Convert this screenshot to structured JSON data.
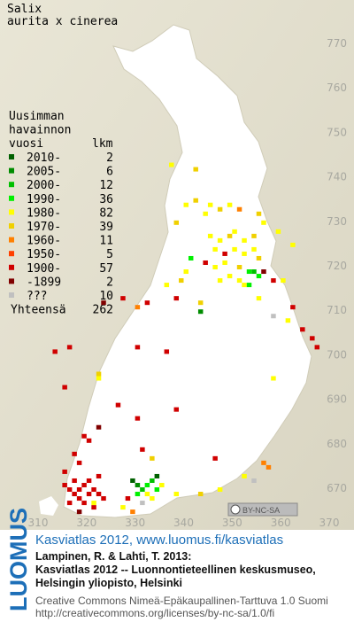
{
  "header": {
    "title": "Salix",
    "subtitle": "aurita x cinerea"
  },
  "legend": {
    "heading": [
      "Uusimman",
      "havainnon",
      "vuosi"
    ],
    "count_heading": "lkm",
    "items": [
      {
        "label": "2010-",
        "count": 2,
        "color": "#006000"
      },
      {
        "label": "2005-",
        "count": 6,
        "color": "#008c00"
      },
      {
        "label": "2000-",
        "count": 12,
        "color": "#00c000"
      },
      {
        "label": "1990-",
        "count": 36,
        "color": "#00f000"
      },
      {
        "label": "1980-",
        "count": 82,
        "color": "#ffff00"
      },
      {
        "label": "1970-",
        "count": 39,
        "color": "#f0d000"
      },
      {
        "label": "1960-",
        "count": 11,
        "color": "#ff8000"
      },
      {
        "label": "1950-",
        "count": 5,
        "color": "#ff4000"
      },
      {
        "label": "1900-",
        "count": 57,
        "color": "#d00000"
      },
      {
        "label": "-1899",
        "count": 2,
        "color": "#800000"
      },
      {
        "label": "???",
        "count": 10,
        "color": "#c0c0c0"
      }
    ],
    "total_label": "Yhteensä",
    "total": 262
  },
  "map": {
    "xticks": [
      310,
      320,
      330,
      340,
      350,
      360,
      370
    ],
    "yticks": [
      670,
      680,
      690,
      700,
      710,
      720,
      730,
      740,
      750,
      760,
      770
    ],
    "squares": [
      [
        337,
        742,
        4
      ],
      [
        342,
        741,
        5
      ],
      [
        340,
        733,
        4
      ],
      [
        342,
        734,
        5
      ],
      [
        345,
        733,
        4
      ],
      [
        347,
        732,
        5
      ],
      [
        349,
        733,
        4
      ],
      [
        351,
        732,
        6
      ],
      [
        344,
        731,
        4
      ],
      [
        338,
        729,
        5
      ],
      [
        356,
        729,
        4
      ],
      [
        355,
        731,
        5
      ],
      [
        345,
        726,
        4
      ],
      [
        347,
        725,
        4
      ],
      [
        349,
        726,
        5
      ],
      [
        350,
        727,
        4
      ],
      [
        352,
        725,
        4
      ],
      [
        354,
        726,
        5
      ],
      [
        346,
        723,
        4
      ],
      [
        348,
        722,
        8
      ],
      [
        350,
        723,
        4
      ],
      [
        352,
        722,
        4
      ],
      [
        354,
        723,
        4
      ],
      [
        355,
        721,
        5
      ],
      [
        344,
        720,
        8
      ],
      [
        346,
        719,
        4
      ],
      [
        348,
        720,
        4
      ],
      [
        351,
        719,
        5
      ],
      [
        353,
        718,
        3
      ],
      [
        354,
        718,
        2
      ],
      [
        355,
        717,
        3
      ],
      [
        349,
        717,
        4
      ],
      [
        347,
        716,
        4
      ],
      [
        351,
        716,
        4
      ],
      [
        352,
        715,
        4
      ],
      [
        353,
        715,
        3
      ],
      [
        340,
        718,
        4
      ],
      [
        339,
        716,
        5
      ],
      [
        341,
        721,
        3
      ],
      [
        336,
        715,
        4
      ],
      [
        343,
        711,
        5
      ],
      [
        356,
        718,
        9
      ],
      [
        358,
        716,
        8
      ],
      [
        360,
        716,
        4
      ],
      [
        362,
        724,
        4
      ],
      [
        359,
        727,
        4
      ],
      [
        330,
        710,
        6
      ],
      [
        332,
        711,
        8
      ],
      [
        327,
        712,
        8
      ],
      [
        323,
        711,
        9
      ],
      [
        338,
        712,
        8
      ],
      [
        343,
        709,
        1
      ],
      [
        355,
        712,
        4
      ],
      [
        358,
        708,
        10
      ],
      [
        362,
        710,
        8
      ],
      [
        366,
        703,
        8
      ],
      [
        364,
        705,
        8
      ],
      [
        367,
        701,
        8
      ],
      [
        361,
        707,
        4
      ],
      [
        313,
        700,
        8
      ],
      [
        316,
        701,
        8
      ],
      [
        330,
        701,
        8
      ],
      [
        336,
        700,
        8
      ],
      [
        358,
        694,
        4
      ],
      [
        322,
        695,
        5
      ],
      [
        322,
        694,
        4
      ],
      [
        315,
        692,
        8
      ],
      [
        326,
        688,
        8
      ],
      [
        338,
        687,
        8
      ],
      [
        330,
        685,
        8
      ],
      [
        322,
        683,
        9
      ],
      [
        319,
        681,
        8
      ],
      [
        320,
        680,
        8
      ],
      [
        317,
        677,
        8
      ],
      [
        318,
        675,
        8
      ],
      [
        331,
        678,
        8
      ],
      [
        333,
        676,
        5
      ],
      [
        346,
        676,
        8
      ],
      [
        315,
        670,
        8
      ],
      [
        316,
        669,
        8
      ],
      [
        317,
        668,
        8
      ],
      [
        318,
        669,
        8
      ],
      [
        319,
        670,
        8
      ],
      [
        320,
        671,
        8
      ],
      [
        321,
        669,
        8
      ],
      [
        322,
        668,
        8
      ],
      [
        318,
        667,
        8
      ],
      [
        316,
        666,
        8
      ],
      [
        319,
        666,
        8
      ],
      [
        321,
        665,
        8
      ],
      [
        323,
        667,
        8
      ],
      [
        317,
        671,
        8
      ],
      [
        320,
        668,
        8
      ],
      [
        318,
        664,
        9
      ],
      [
        322,
        672,
        8
      ],
      [
        315,
        673,
        8
      ],
      [
        321,
        666,
        4
      ],
      [
        329,
        671,
        0
      ],
      [
        330,
        670,
        1
      ],
      [
        331,
        669,
        2
      ],
      [
        332,
        670,
        3
      ],
      [
        333,
        671,
        2
      ],
      [
        334,
        669,
        3
      ],
      [
        330,
        668,
        3
      ],
      [
        332,
        668,
        4
      ],
      [
        333,
        667,
        4
      ],
      [
        331,
        666,
        10
      ],
      [
        328,
        667,
        8
      ],
      [
        335,
        670,
        4
      ],
      [
        334,
        672,
        0
      ],
      [
        327,
        665,
        4
      ],
      [
        329,
        664,
        6
      ],
      [
        338,
        668,
        4
      ],
      [
        343,
        668,
        5
      ],
      [
        347,
        669,
        4
      ],
      [
        352,
        672,
        4
      ],
      [
        356,
        675,
        6
      ],
      [
        357,
        674,
        6
      ],
      [
        354,
        671,
        10
      ]
    ],
    "license_badge": "BY-NC-SA"
  },
  "footer": {
    "logo": "LUOMUS",
    "link": "Kasviatlas 2012, www.luomus.fi/kasviatlas",
    "citation": [
      "Lampinen, R. & Lahti, T. 2013:",
      "Kasviatlas 2012 -- Luonnontieteellinen keskusmuseo,",
      "Helsingin yliopisto, Helsinki"
    ],
    "license": [
      "Creative Commons Nimeä-Epäkaupallinen-Tarttuva 1.0 Suomi",
      "http://creativecommons.org/licenses/by-nc-sa/1.0/fi"
    ]
  }
}
